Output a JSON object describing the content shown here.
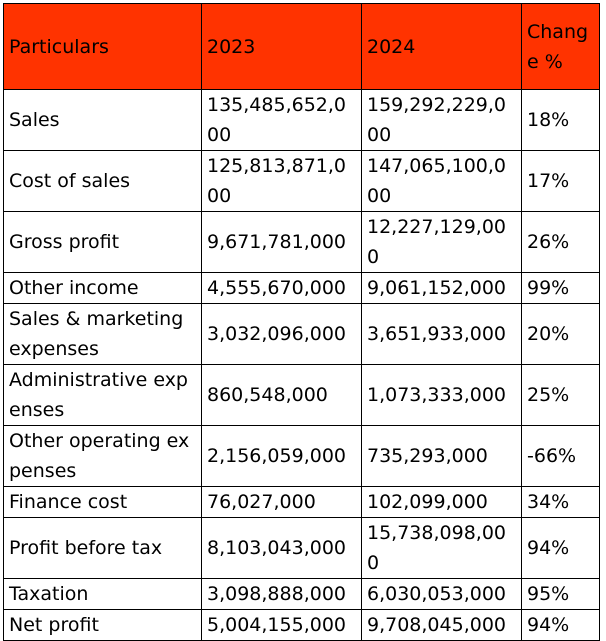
{
  "colors": {
    "header_background": "#ff3300",
    "border": "#000000",
    "text": "#000000"
  },
  "table": {
    "headers": [
      "Particulars",
      "2023",
      "2024",
      "Change %"
    ],
    "rows": [
      [
        "Sales",
        "135,485,652,000",
        "159,292,229,000",
        "18%"
      ],
      [
        "Cost of sales",
        "125,813,871,000",
        "147,065,100,000",
        "17%"
      ],
      [
        "Gross profit",
        "9,671,781,000",
        "12,227,129,000",
        "26%"
      ],
      [
        "Other income",
        "4,555,670,000",
        "9,061,152,000",
        "99%"
      ],
      [
        "Sales & marketing expenses",
        "3,032,096,000",
        "3,651,933,000",
        "20%"
      ],
      [
        "Administrative expenses",
        "860,548,000",
        "1,073,333,000",
        "25%"
      ],
      [
        "Other operating expenses",
        "2,156,059,000",
        "735,293,000",
        "-66%"
      ],
      [
        "Finance cost",
        "76,027,000",
        "102,099,000",
        "34%"
      ],
      [
        "Profit before tax",
        "8,103,043,000",
        "15,738,098,000",
        "94%"
      ],
      [
        "Taxation",
        "3,098,888,000",
        "6,030,053,000",
        "95%"
      ],
      [
        "Net profit",
        "5,004,155,000",
        "9,708,045,000",
        "94%"
      ]
    ]
  }
}
